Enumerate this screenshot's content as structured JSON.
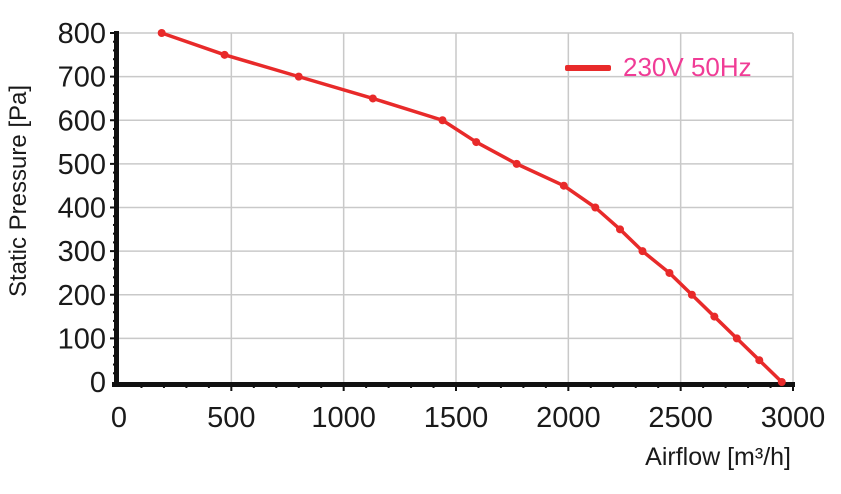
{
  "chart_data": {
    "type": "line",
    "title": "",
    "xlabel": "Airflow [m³/h]",
    "ylabel": "Static Pressure [Pa]",
    "xlim": [
      0,
      3000
    ],
    "ylim": [
      0,
      800
    ],
    "x_ticks": [
      0,
      500,
      1000,
      1500,
      2000,
      2500,
      3000
    ],
    "y_ticks": [
      0,
      100,
      200,
      300,
      400,
      500,
      600,
      700,
      800
    ],
    "x_minor_step": 100,
    "y_minor_step": 20,
    "grid": true,
    "legend_position": "top-right",
    "series": [
      {
        "name": "230V 50Hz",
        "points": [
          [
            190,
            800
          ],
          [
            470,
            750
          ],
          [
            800,
            700
          ],
          [
            1130,
            650
          ],
          [
            1440,
            600
          ],
          [
            1590,
            550
          ],
          [
            1770,
            500
          ],
          [
            1980,
            450
          ],
          [
            2120,
            400
          ],
          [
            2230,
            350
          ],
          [
            2330,
            300
          ],
          [
            2450,
            250
          ],
          [
            2550,
            200
          ],
          [
            2650,
            150
          ],
          [
            2750,
            100
          ],
          [
            2850,
            50
          ],
          [
            2950,
            0
          ]
        ]
      }
    ]
  },
  "colors": {
    "series_red": "#e82a2a",
    "legend_text_pink": "#f03c96",
    "gridline": "#c9c9c9",
    "axis": "#111111",
    "tick_text": "#1a1a1a"
  }
}
